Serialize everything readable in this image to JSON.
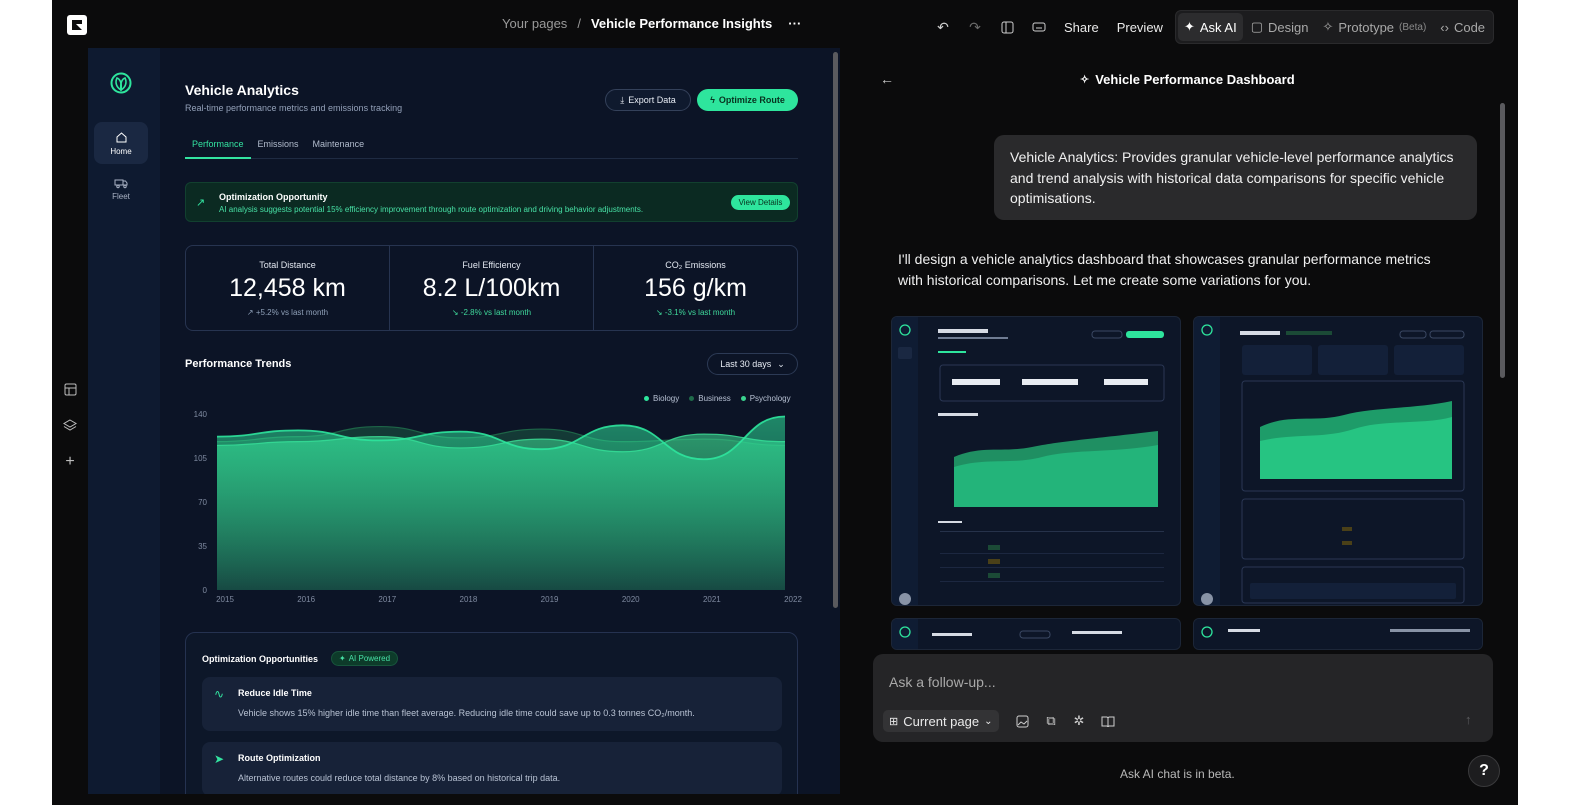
{
  "topbar": {
    "breadcrumb_root": "Your pages",
    "breadcrumb_sep": "/",
    "breadcrumb_current": "Vehicle Performance Insights",
    "more": "···",
    "share": "Share",
    "preview": "Preview",
    "ask_ai": "Ask AI",
    "design": "Design",
    "prototype": "Prototype",
    "prototype_beta": "(Beta)",
    "code": "Code"
  },
  "app": {
    "nav": [
      {
        "label": "Home",
        "icon": "home-icon"
      },
      {
        "label": "Fleet",
        "icon": "truck-icon"
      }
    ],
    "title": "Vehicle Analytics",
    "subtitle": "Real-time performance metrics and emissions tracking",
    "export_label": "Export Data",
    "optimize_label": "Optimize Route",
    "tabs": [
      {
        "label": "Performance"
      },
      {
        "label": "Emissions"
      },
      {
        "label": "Maintenance"
      }
    ],
    "alert": {
      "title": "Optimization Opportunity",
      "desc": "AI analysis suggests potential 15% efficiency improvement through route optimization and driving behavior adjustments.",
      "button": "View Details"
    },
    "stats": [
      {
        "label": "Total Distance",
        "value": "12,458 km",
        "delta": "↗ +5.2% vs last month"
      },
      {
        "label": "Fuel Efficiency",
        "value": "8.2 L/100km",
        "delta": "↘ -2.8% vs last month"
      },
      {
        "label": "CO₂ Emissions",
        "value": "156 g/km",
        "delta": "↘ -3.1% vs last month"
      }
    ],
    "trends_title": "Performance Trends",
    "range_label": "Last 30 days",
    "opps_title": "Optimization Opportunities",
    "opps_badge": "AI Powered",
    "opps": [
      {
        "title": "Reduce Idle Time",
        "desc": "Vehicle shows 15% higher idle time than fleet average. Reducing idle time could save up to 0.3 tonnes CO₂/month."
      },
      {
        "title": "Route Optimization",
        "desc": "Alternative routes could reduce total distance by 8% based on historical trip data."
      }
    ]
  },
  "chart_data": {
    "type": "area",
    "title": "Performance Trends",
    "x": [
      2015,
      2016,
      2017,
      2018,
      2019,
      2020,
      2021,
      2022
    ],
    "x_tick_labels": [
      "2015",
      "2016",
      "2017",
      "2018",
      "2019",
      "2020",
      "2021",
      "2022"
    ],
    "y_tick_labels": [
      "0",
      "35",
      "70",
      "105",
      "140"
    ],
    "ylim": [
      0,
      140
    ],
    "series": [
      {
        "name": "Biology",
        "color": "#2ee59d",
        "values": [
          122,
          127,
          119,
          126,
          112,
          131,
          104,
          138
        ]
      },
      {
        "name": "Business",
        "color": "#1f6b4a",
        "values": [
          118,
          122,
          130,
          121,
          128,
          118,
          120,
          115
        ]
      },
      {
        "name": "Psychology",
        "color": "#3ad38f",
        "values": [
          115,
          118,
          122,
          113,
          120,
          110,
          124,
          118
        ]
      }
    ]
  },
  "chat": {
    "title": "Vehicle Performance Dashboard",
    "user_message": "Vehicle Analytics: Provides granular vehicle-level performance analytics and trend analysis with historical data comparisons for specific vehicle optimisations.",
    "assistant_message": "I'll design a vehicle analytics dashboard that showcases granular performance metrics with historical comparisons. Let me create some variations for you.",
    "composer_placeholder": "Ask a follow-up...",
    "current_page": "Current page",
    "beta_note": "Ask AI chat is in beta.",
    "help": "?"
  },
  "colors": {
    "accent": "#2ee59d",
    "canvas": "#0c1426",
    "chrome": "#0b0b0c"
  }
}
